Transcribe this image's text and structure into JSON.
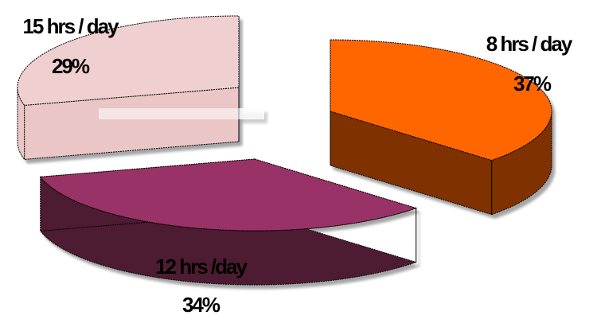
{
  "chart_data": {
    "type": "pie",
    "style": "3d-exploded",
    "title": "",
    "categories": [
      "8 hrs / day",
      "12 hrs /day",
      "15 hrs / day"
    ],
    "values": [
      37,
      34,
      29
    ],
    "labels": [
      {
        "category": "8 hrs / day",
        "percent": "37%"
      },
      {
        "category": "12 hrs /day",
        "percent": "34%"
      },
      {
        "category": "15 hrs / day",
        "percent": "29%"
      }
    ],
    "colors": {
      "8 hrs / day": {
        "top": "#FF6600",
        "side": "#7F3300"
      },
      "12 hrs /day": {
        "top": "#993366",
        "side": "#4D1A33"
      },
      "15 hrs / day": {
        "top": "#EFCFCF",
        "side": "#EBC6C6"
      }
    },
    "legend": "none",
    "outline_color": "#000000"
  }
}
